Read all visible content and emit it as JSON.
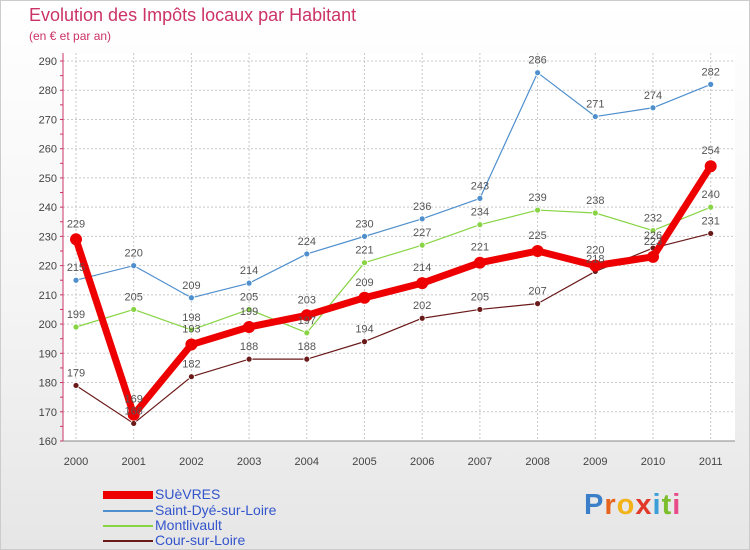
{
  "header": {
    "title": "Evolution des Impôts locaux par Habitant",
    "subtitle": "(en € et par an)"
  },
  "chart_data": {
    "type": "line",
    "title": "Evolution des Impôts locaux par Habitant",
    "subtitle": "(en € et par an)",
    "xlabel": "",
    "ylabel": "",
    "categories": [
      "2000",
      "2001",
      "2002",
      "2003",
      "2004",
      "2005",
      "2006",
      "2007",
      "2008",
      "2009",
      "2010",
      "2011"
    ],
    "ylim": [
      160,
      290
    ],
    "yticks": [
      160,
      170,
      180,
      190,
      200,
      210,
      220,
      230,
      240,
      250,
      260,
      270,
      280,
      290
    ],
    "grid": true,
    "legend_position": "bottom-left",
    "series": [
      {
        "name": "SUèVRES",
        "color": "#ee0000",
        "values": [
          229,
          169,
          193,
          199,
          203,
          209,
          214,
          221,
          225,
          220,
          223,
          254
        ],
        "labels": [
          "229",
          "169",
          "193",
          "199",
          "203",
          "209",
          "214",
          "221",
          "225",
          "220",
          "223",
          "254"
        ]
      },
      {
        "name": "Saint-Dyé-sur-Loire",
        "color": "#4f8fcd",
        "values": [
          215,
          220,
          209,
          214,
          224,
          230,
          236,
          243,
          286,
          271,
          274,
          282
        ],
        "labels": [
          "215",
          "220",
          "209",
          "214",
          "224",
          "230",
          "236",
          "243",
          "286",
          "271",
          "274",
          "282"
        ]
      },
      {
        "name": "Montlivault",
        "color": "#88d444",
        "values": [
          199,
          205,
          198,
          205,
          197,
          221,
          227,
          234,
          239,
          238,
          232,
          240
        ],
        "labels": [
          "199",
          "205",
          "198",
          "205",
          "197",
          "221",
          "227",
          "234",
          "239",
          "238",
          "232",
          "240"
        ]
      },
      {
        "name": "Cour-sur-Loire",
        "color": "#6b1a1a",
        "values": [
          179,
          166,
          182,
          188,
          188,
          194,
          202,
          205,
          207,
          218,
          226,
          231
        ],
        "labels": [
          "179",
          "166",
          "182",
          "188",
          "188",
          "194",
          "202",
          "205",
          "207",
          "218",
          "226",
          "231"
        ]
      }
    ]
  },
  "logo": {
    "letters": [
      "P",
      "r",
      "o",
      "x",
      "i",
      "t",
      "i"
    ],
    "colors": [
      "#3a7fc8",
      "#e8641e",
      "#f2b21a",
      "#e23a2a",
      "#3a9fd8",
      "#7cbe2e",
      "#e84a8a"
    ]
  }
}
